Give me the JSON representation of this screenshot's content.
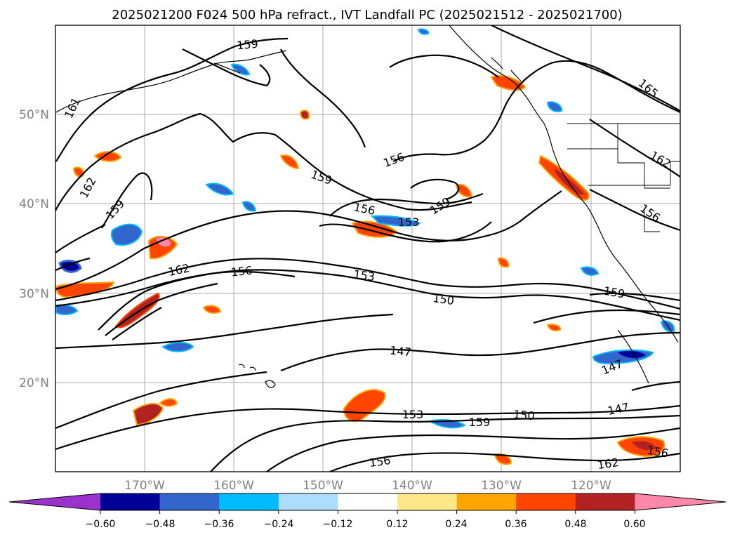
{
  "title": "2025021200 F024 500 hPa refract., IVT Landfall PC (2025021512 - 2025021700)",
  "longitude_labels": [
    "170°W",
    "160°W",
    "150°W",
    "140°W",
    "130°W",
    "120°W"
  ],
  "latitude_labels": [
    "50°N",
    "40°N",
    "30°N",
    "20°N"
  ],
  "colorbar": {
    "tick_labels": [
      "−0.60",
      "−0.48",
      "−0.36",
      "−0.24",
      "−0.12",
      "0.12",
      "0.24",
      "0.36",
      "0.48",
      "0.60"
    ],
    "colors": [
      "#9933cc",
      "#000099",
      "#3366cc",
      "#00bbff",
      "#aaddff",
      "#ffffff",
      "#ffe88a",
      "#ffa500",
      "#ff4400",
      "#b22222",
      "#ff88aa"
    ]
  },
  "contour_labels": [
    "159",
    "165",
    "161",
    "162",
    "159",
    "156",
    "159",
    "156",
    "153",
    "159",
    "162",
    "156",
    "153",
    "150",
    "162",
    "156",
    "159",
    "147",
    "147",
    "147",
    "153",
    "159",
    "150",
    "156",
    "162",
    "156"
  ]
}
